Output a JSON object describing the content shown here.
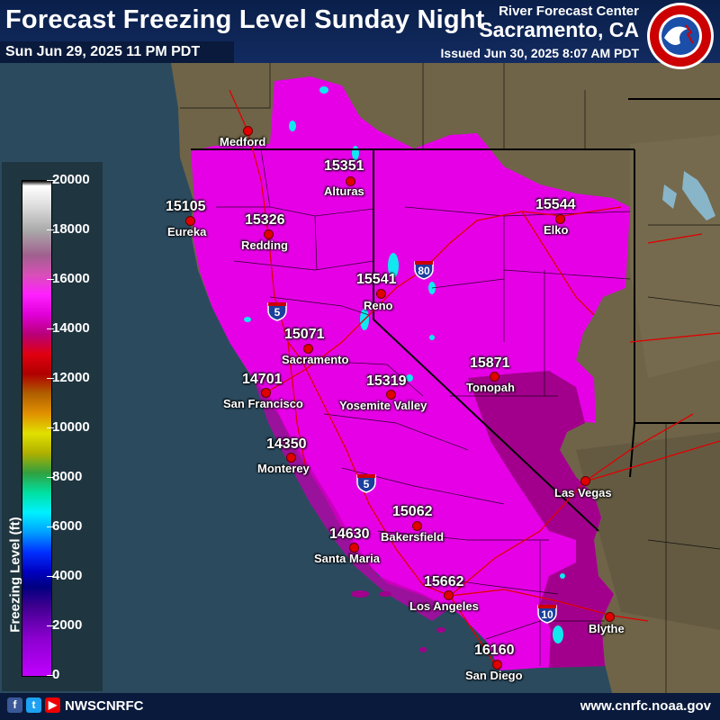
{
  "header": {
    "title": "Forecast Freezing Level Sunday Night",
    "valid_time": "Sun Jun 29, 2025 11 PM PDT",
    "org": "River Forecast Center",
    "office": "Sacramento, CA",
    "issued": "Issued Jun 30, 2025 8:07 AM PDT",
    "logo_text": "NATIONAL WEATHER SERVICE"
  },
  "legend": {
    "title": "Freezing Level (ft)",
    "ticks": [
      "20000",
      "18000",
      "16000",
      "14000",
      "12000",
      "10000",
      "8000",
      "6000",
      "4000",
      "2000",
      "0"
    ]
  },
  "points": [
    {
      "value": "15351",
      "city": "Alturas"
    },
    {
      "value": "15105",
      "city": "Eureka"
    },
    {
      "value": "15326",
      "city": "Redding"
    },
    {
      "value": "15544",
      "city": "Elko"
    },
    {
      "value": "15541",
      "city": "Reno"
    },
    {
      "value": "15071",
      "city": "Sacramento"
    },
    {
      "value": "15871",
      "city": "Tonopah"
    },
    {
      "value": "14701",
      "city": "San Francisco"
    },
    {
      "value": "15319",
      "city": "Yosemite Valley"
    },
    {
      "value": "14350",
      "city": "Monterey"
    },
    {
      "value": "15062",
      "city": "Bakersfield"
    },
    {
      "value": "14630",
      "city": "Santa Maria"
    },
    {
      "value": "15662",
      "city": "Los Angeles"
    },
    {
      "value": "16160",
      "city": "San Diego"
    }
  ],
  "cities": {
    "medford": "Medford",
    "las_vegas": "Las Vegas",
    "blythe": "Blythe"
  },
  "shields": {
    "i5_north": "5",
    "i5_south": "5",
    "i80": "80",
    "i10": "10"
  },
  "footer": {
    "handle": "NWSCNRFC",
    "url": "www.cnrfc.noaa.gov"
  },
  "colors": {
    "ocean": "#2b4a5e",
    "land": "#6b6048",
    "freezing_15000": "#e600e6",
    "freezing_16000": "#a0008a",
    "header_bg": "#0a1f4a"
  }
}
